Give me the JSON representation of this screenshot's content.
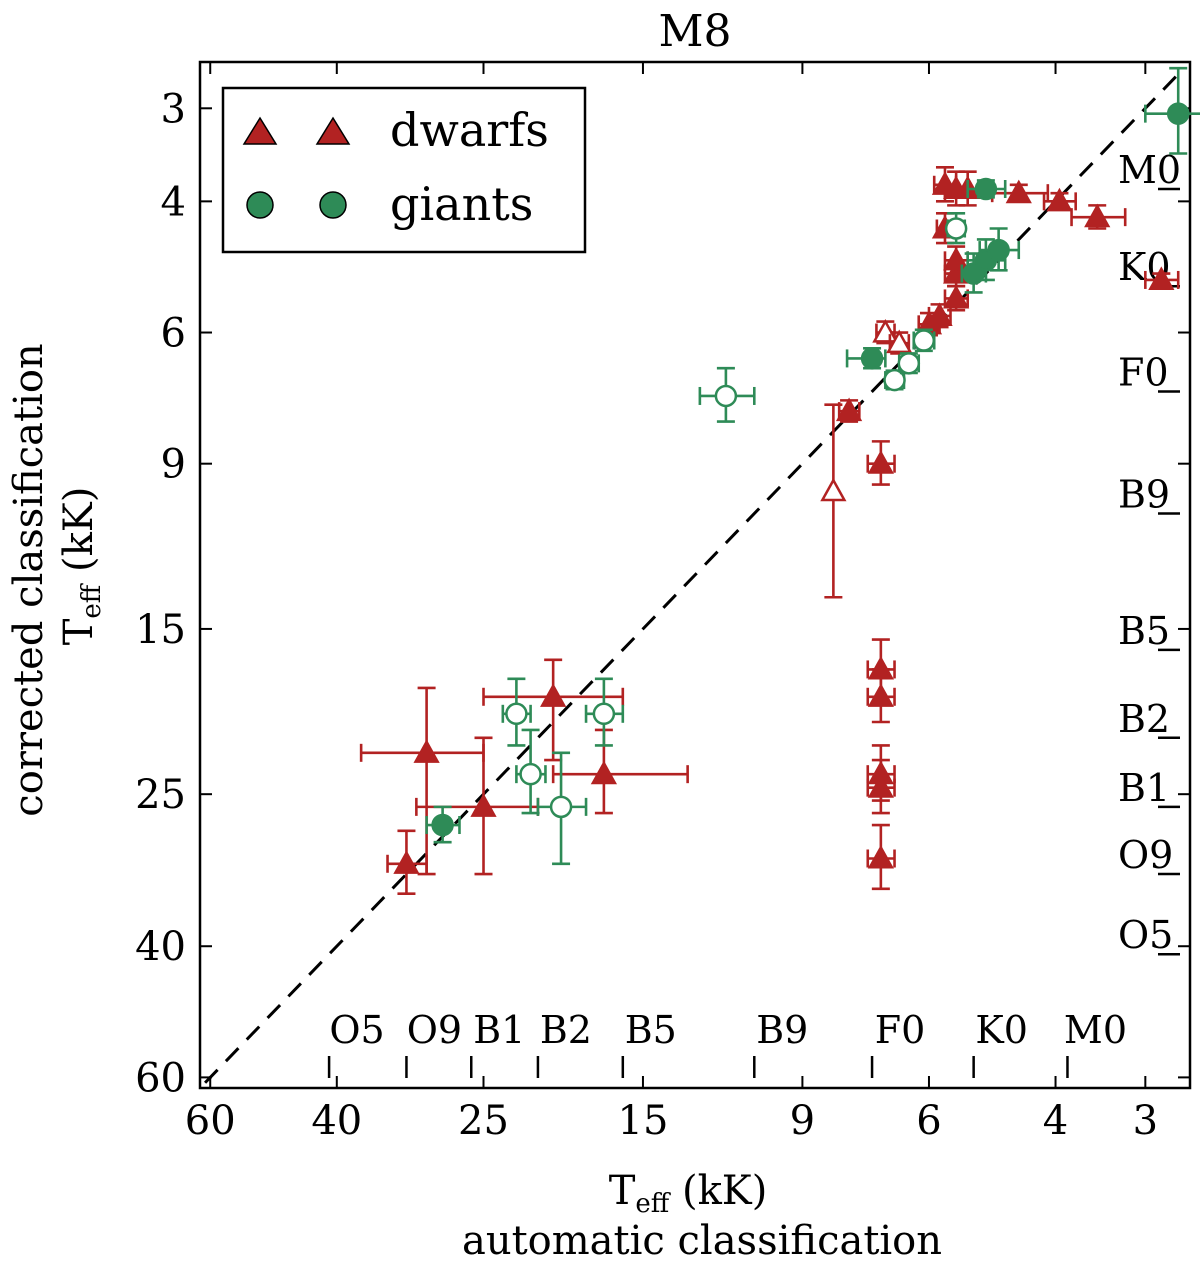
{
  "chart_data": {
    "type": "scatter",
    "title": "M8",
    "xlabel_line1": "T",
    "xlabel_sub": "eff",
    "xlabel_unit": " (kK)",
    "xlabel_line2": "automatic classification",
    "ylabel_line1": "corrected classification",
    "ylabel_line2": "T",
    "ylabel_sub": "eff",
    "ylabel_unit": " (kK)",
    "axis_scale": "log, reversed (temperature decreases to the right and upward)",
    "xlim": [
      62,
      2.6
    ],
    "ylim": [
      62,
      2.6
    ],
    "xticks": [
      60,
      40,
      25,
      15,
      9,
      6,
      4,
      3
    ],
    "yticks": [
      60,
      40,
      25,
      15,
      9,
      6,
      4,
      3
    ],
    "spectral_types": [
      {
        "label": "O5",
        "teff": 41
      },
      {
        "label": "O9",
        "teff": 32
      },
      {
        "label": "B1",
        "teff": 26
      },
      {
        "label": "B2",
        "teff": 21
      },
      {
        "label": "B5",
        "teff": 16
      },
      {
        "label": "B9",
        "teff": 10.5
      },
      {
        "label": "F0",
        "teff": 7.2
      },
      {
        "label": "K0",
        "teff": 5.2
      },
      {
        "label": "M0",
        "teff": 3.85
      }
    ],
    "diagonal": "y = x (dashed)",
    "legend": [
      {
        "label": "dwarfs",
        "marker": "triangle",
        "color": "#b22222"
      },
      {
        "label": "giants",
        "marker": "circle",
        "color": "#2e8b57"
      }
    ],
    "series": [
      {
        "name": "dwarfs",
        "color": "#b22222",
        "points": [
          {
            "x": 32,
            "y": 31,
            "xerr": 2,
            "yerr": 3,
            "filled": true
          },
          {
            "x": 30,
            "y": 22,
            "xerr": [
              7,
              5
            ],
            "yerr": [
              10,
              4
            ],
            "filled": true
          },
          {
            "x": 25,
            "y": 26,
            "xerr": [
              6,
              4
            ],
            "yerr": [
              6,
              5
            ],
            "filled": true
          },
          {
            "x": 20,
            "y": 18.5,
            "xerr": [
              5,
              4
            ],
            "yerr": [
              4,
              2
            ],
            "filled": true
          },
          {
            "x": 17,
            "y": 23.5,
            "xerr": [
              3,
              4
            ],
            "yerr": [
              3,
              3
            ],
            "filled": true
          },
          {
            "x": 7.0,
            "y": 17,
            "xerr": 0.3,
            "yerr": 1.5,
            "filled": true
          },
          {
            "x": 7.0,
            "y": 18.5,
            "xerr": 0.3,
            "yerr": 1.5,
            "filled": true
          },
          {
            "x": 7.0,
            "y": 23.5,
            "xerr": 0.3,
            "yerr": 2,
            "filled": true
          },
          {
            "x": 7.0,
            "y": 24.5,
            "xerr": 0.3,
            "yerr": 2,
            "filled": true
          },
          {
            "x": 7.0,
            "y": 30.5,
            "xerr": 0.3,
            "yerr": 3,
            "filled": true
          },
          {
            "x": 7.0,
            "y": 9.0,
            "xerr": 0.3,
            "yerr": 0.6,
            "filled": true
          },
          {
            "x": 7.75,
            "y": 7.65,
            "xerr": 0.25,
            "yerr": 0.25,
            "filled": true
          },
          {
            "x": 8.15,
            "y": 9.8,
            "xerr": 0,
            "yerr": [
              3.8,
              2.3
            ],
            "filled": false
          },
          {
            "x": 6.9,
            "y": 6.0,
            "xerr": 0.2,
            "yerr": 0.2,
            "filled": false
          },
          {
            "x": 6.6,
            "y": 6.2,
            "xerr": 0.2,
            "yerr": 0.2,
            "filled": false
          },
          {
            "x": 6.0,
            "y": 5.85,
            "xerr": 0.2,
            "yerr": 0.2,
            "filled": true
          },
          {
            "x": 5.8,
            "y": 5.7,
            "xerr": 0.2,
            "yerr": 0.2,
            "filled": true
          },
          {
            "x": 5.5,
            "y": 5.4,
            "xerr": 0.2,
            "yerr": 0.2,
            "filled": true
          },
          {
            "x": 5.5,
            "y": 5.0,
            "xerr": 0.2,
            "yerr": 0.2,
            "filled": true
          },
          {
            "x": 5.5,
            "y": 4.8,
            "xerr": 0.2,
            "yerr": 0.2,
            "filled": true
          },
          {
            "x": 5.7,
            "y": 4.35,
            "xerr": 0.15,
            "yerr": 0.2,
            "filled": true
          },
          {
            "x": 5.7,
            "y": 3.8,
            "xerr": 0.2,
            "yerr": 0.2,
            "filled": true
          },
          {
            "x": 5.5,
            "y": 3.85,
            "xerr": 0.2,
            "yerr": 0.2,
            "filled": true
          },
          {
            "x": 5.3,
            "y": 3.85,
            "xerr": 0.2,
            "yerr": 0.2,
            "filled": true
          },
          {
            "x": 4.5,
            "y": 3.9,
            "xerr": 0.4,
            "yerr": 0.1,
            "filled": true
          },
          {
            "x": 3.95,
            "y": 4.0,
            "xerr": 0.2,
            "yerr": 0.1,
            "filled": true
          },
          {
            "x": 3.5,
            "y": 4.2,
            "xerr": 0.3,
            "yerr": 0.15,
            "filled": true
          },
          {
            "x": 2.85,
            "y": 5.1,
            "xerr": 0.15,
            "yerr": 0.1,
            "filled": true
          }
        ]
      },
      {
        "name": "giants",
        "color": "#2e8b57",
        "points": [
          {
            "x": 28.5,
            "y": 27.5,
            "xerr": 1.5,
            "yerr": 1.5,
            "filled": true
          },
          {
            "x": 22.5,
            "y": 19.5,
            "xerr": 1,
            "yerr": 2,
            "filled": false
          },
          {
            "x": 21.5,
            "y": 23.5,
            "xerr": 1,
            "yerr": 3,
            "filled": false
          },
          {
            "x": 19.5,
            "y": 26,
            "xerr": 1.5,
            "yerr": [
              5,
              4
            ],
            "filled": false
          },
          {
            "x": 17,
            "y": 19.5,
            "xerr": 1,
            "yerr": 2,
            "filled": false
          },
          {
            "x": 11.5,
            "y": 7.3,
            "xerr": 1,
            "yerr": 0.6,
            "filled": false
          },
          {
            "x": 7.2,
            "y": 6.5,
            "xerr": [
              0.6,
              0.3
            ],
            "yerr": 0.2,
            "filled": true
          },
          {
            "x": 6.7,
            "y": 6.95,
            "xerr": 0.2,
            "yerr": 0.2,
            "filled": false
          },
          {
            "x": 6.4,
            "y": 6.6,
            "xerr": 0.2,
            "yerr": 0.2,
            "filled": false
          },
          {
            "x": 6.1,
            "y": 6.15,
            "xerr": 0.2,
            "yerr": 0.2,
            "filled": false
          },
          {
            "x": 5.5,
            "y": 4.35,
            "xerr": 0.15,
            "yerr": 0.2,
            "filled": false
          },
          {
            "x": 5.0,
            "y": 3.85,
            "xerr": 0.3,
            "yerr": 0.1,
            "filled": true
          },
          {
            "x": 5.2,
            "y": 5.0,
            "xerr": 0.2,
            "yerr": 0.3,
            "filled": true
          },
          {
            "x": 5.0,
            "y": 4.8,
            "xerr": 0.3,
            "yerr": 0.3,
            "filled": true
          },
          {
            "x": 4.8,
            "y": 4.65,
            "xerr": 0.3,
            "yerr": 0.3,
            "filled": true
          },
          {
            "x": 2.7,
            "y": 3.05,
            "xerr": 0.3,
            "yerr": 0.4,
            "filled": true
          }
        ]
      }
    ]
  }
}
